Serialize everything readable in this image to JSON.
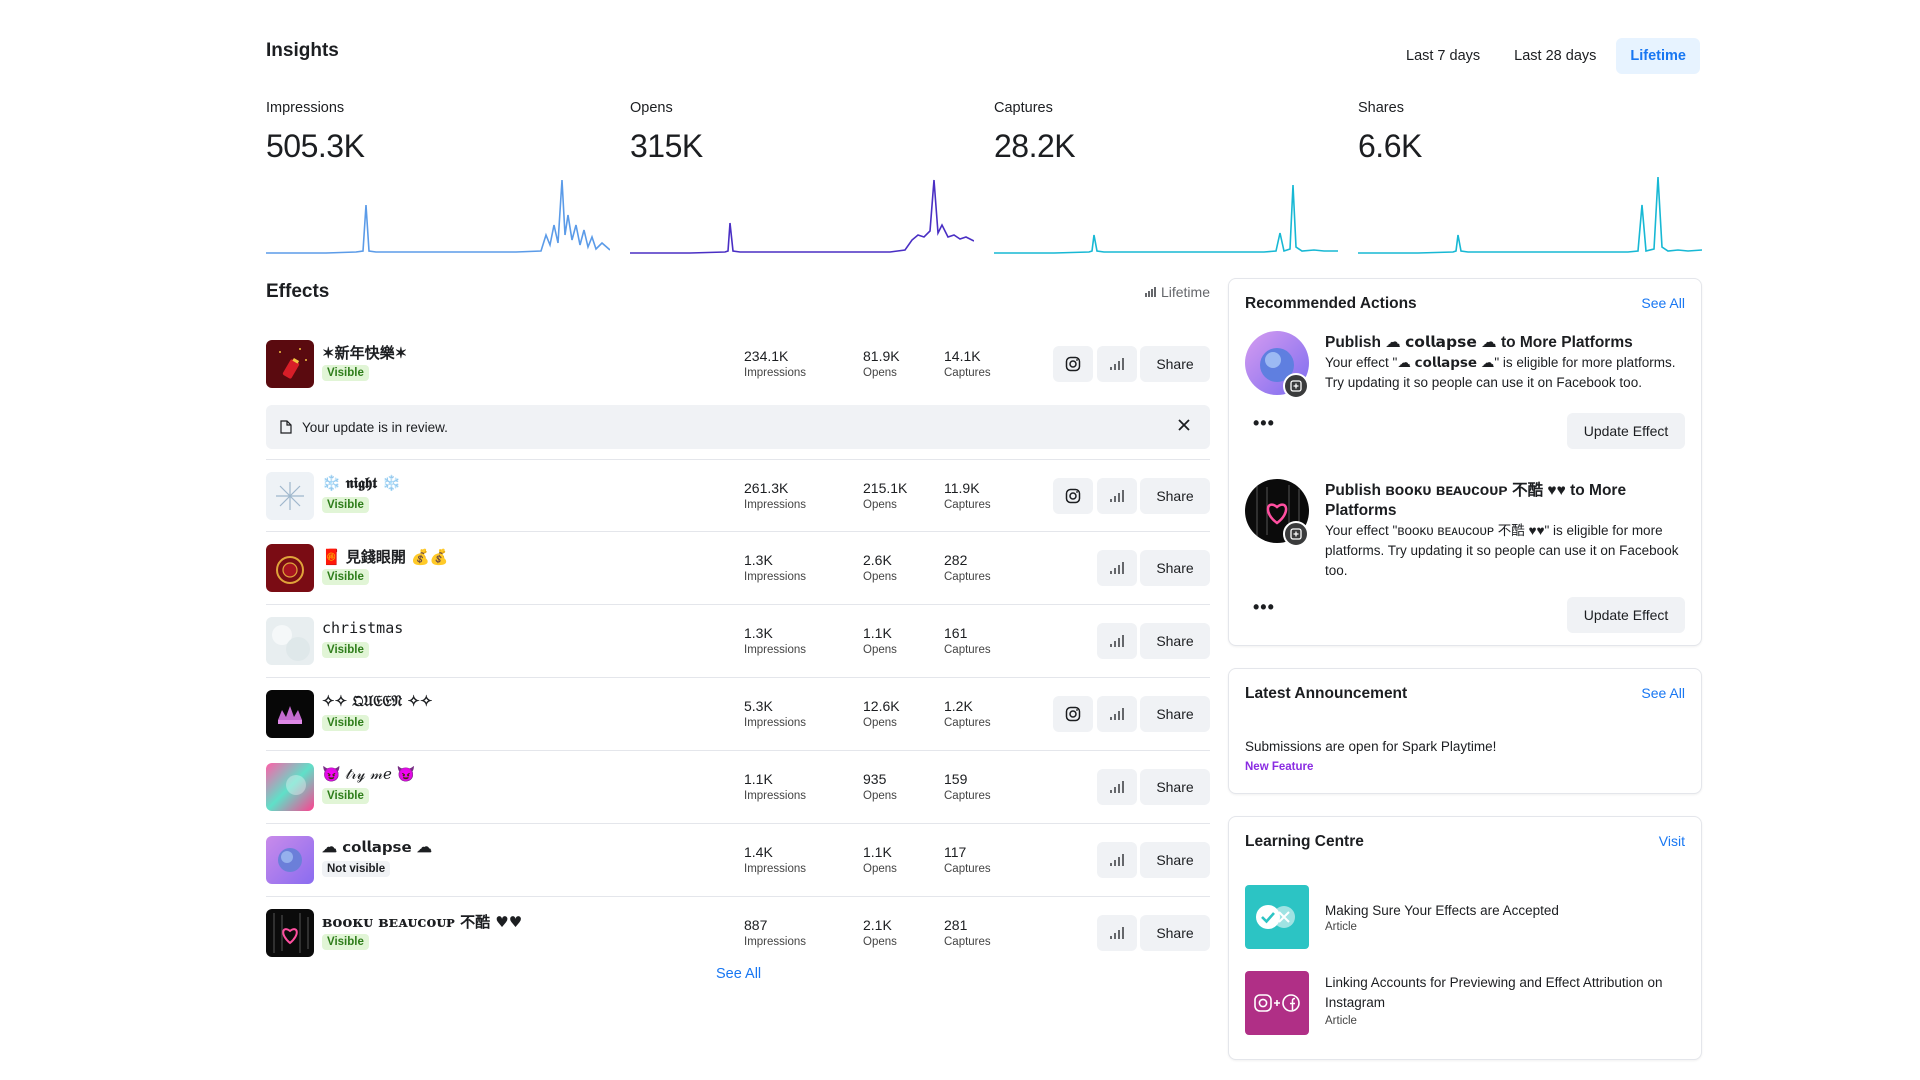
{
  "header": {
    "title": "Insights",
    "ranges": [
      {
        "label": "Last 7 days",
        "active": false
      },
      {
        "label": "Last 28 days",
        "active": false
      },
      {
        "label": "Lifetime",
        "active": true
      }
    ]
  },
  "metrics": [
    {
      "label": "Impressions",
      "value": "505.3K",
      "color": "#5b9be8"
    },
    {
      "label": "Opens",
      "value": "315K",
      "color": "#4a2fc4"
    },
    {
      "label": "Captures",
      "value": "28.2K",
      "color": "#17b8d4"
    },
    {
      "label": "Shares",
      "value": "6.6K",
      "color": "#17b8d4"
    }
  ],
  "effects": {
    "title": "Effects",
    "period_label": "Lifetime",
    "period_icon": "bar-chart-icon",
    "stat_labels": {
      "impressions": "Impressions",
      "opens": "Opens",
      "captures": "Captures"
    },
    "share_label": "Share",
    "review_notice": "Your update is in review.",
    "see_all": "See All",
    "items": [
      {
        "name": "✶新年快樂✶",
        "status": "Visible",
        "impressions": "234.1K",
        "opens": "81.9K",
        "captures": "14.1K",
        "instagram": true
      },
      {
        "name": "❄️ 𝖓𝖎𝖌𝖍𝖙 ❄️",
        "status": "Visible",
        "impressions": "261.3K",
        "opens": "215.1K",
        "captures": "11.9K",
        "instagram": true
      },
      {
        "name": "🧧 見錢眼開 💰💰",
        "status": "Visible",
        "impressions": "1.3K",
        "opens": "2.6K",
        "captures": "282",
        "instagram": false
      },
      {
        "name": "christmas",
        "status": "Visible",
        "impressions": "1.3K",
        "opens": "1.1K",
        "captures": "161",
        "instagram": false
      },
      {
        "name": "✧✧ 𝔔𝔘𝔈𝔈𝔑 ✧✧",
        "status": "Visible",
        "impressions": "5.3K",
        "opens": "12.6K",
        "captures": "1.2K",
        "instagram": true
      },
      {
        "name": "😈 𝓉𝓇𝓎 𝓂𝑒 😈",
        "status": "Visible",
        "impressions": "1.1K",
        "opens": "935",
        "captures": "159",
        "instagram": false
      },
      {
        "name": "☁ 𝗰𝗼𝗹𝗹𝗮𝗽𝘀𝗲 ☁",
        "status": "Not visible",
        "impressions": "1.4K",
        "opens": "1.1K",
        "captures": "117",
        "instagram": false
      },
      {
        "name": "ʙᴏᴏᴋᴜ ʙᴇᴀᴜᴄᴏᴜᴘ 不酷 ♥♥",
        "status": "Visible",
        "impressions": "887",
        "opens": "2.1K",
        "captures": "281",
        "instagram": false
      }
    ]
  },
  "recommended": {
    "title": "Recommended Actions",
    "see_all": "See All",
    "items": [
      {
        "heading": "Publish ☁ 𝗰𝗼𝗹𝗹𝗮𝗽𝘀𝗲 ☁ to More Platforms",
        "body": "Your effect \"☁ 𝗰𝗼𝗹𝗹𝗮𝗽𝘀𝗲 ☁\" is eligible for more platforms. Try updating it so people can use it on Facebook too.",
        "button": "Update Effect",
        "more": "•••"
      },
      {
        "heading": "Publish ʙᴏᴏᴋᴜ ʙᴇᴀᴜᴄᴏᴜᴘ 不酷 ♥♥ to More Platforms",
        "body": "Your effect \"ʙᴏᴏᴋᴜ ʙᴇᴀᴜᴄᴏᴜᴘ 不酷 ♥♥\" is eligible for more platforms. Try updating it so people can use it on Facebook too.",
        "button": "Update Effect",
        "more": "•••"
      }
    ]
  },
  "announcement": {
    "title": "Latest Announcement",
    "see_all": "See All",
    "text": "Submissions are open for Spark Playtime!",
    "tag": "New Feature"
  },
  "learning": {
    "title": "Learning Centre",
    "visit": "Visit",
    "items": [
      {
        "title": "Making Sure Your Effects are Accepted",
        "type": "Article",
        "thumb_color": "#2cc4c4"
      },
      {
        "title": "Linking Accounts for Previewing and Effect Attribution on Instagram",
        "type": "Article",
        "thumb_color": "#b02f86"
      }
    ]
  },
  "icons": {
    "instagram": "instagram-icon",
    "chart": "insights-chart-icon",
    "document": "document-icon",
    "close": "close-icon"
  }
}
